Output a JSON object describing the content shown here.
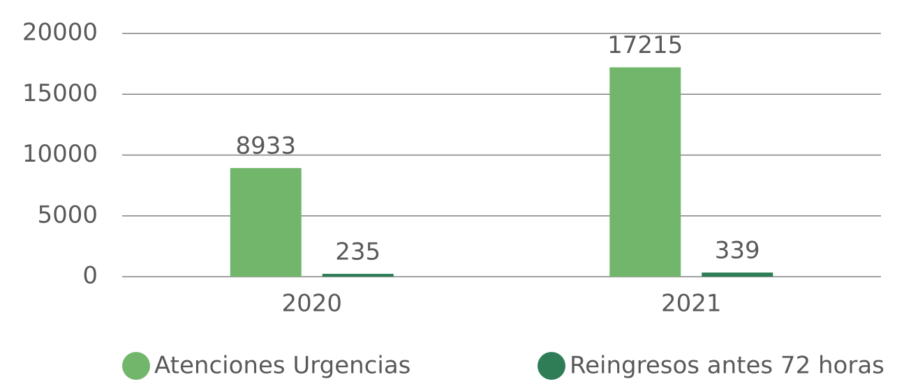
{
  "chart_data": {
    "type": "bar",
    "categories": [
      "2020",
      "2021"
    ],
    "series": [
      {
        "name": "Atenciones Urgencias",
        "color": "#72b66c",
        "values": [
          8933,
          17215
        ]
      },
      {
        "name": "Reingresos antes 72 horas",
        "color": "#2e7d57",
        "values": [
          235,
          339
        ]
      }
    ],
    "ylim": [
      0,
      20000
    ],
    "yticks": [
      0,
      5000,
      10000,
      15000,
      20000
    ],
    "grid": true,
    "legend": "bottom"
  }
}
